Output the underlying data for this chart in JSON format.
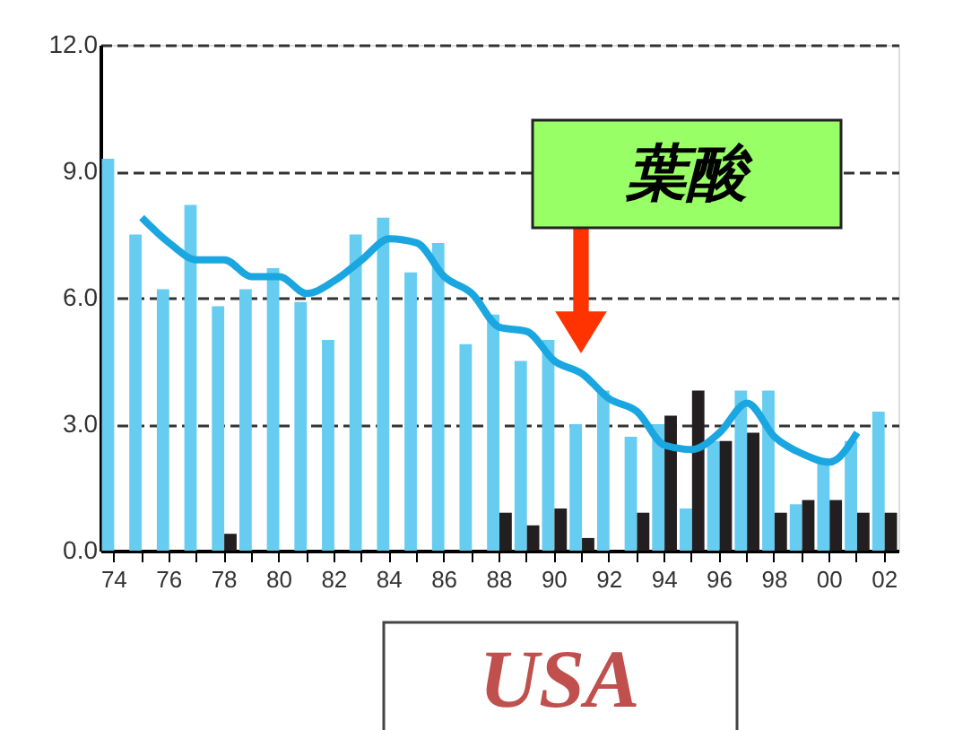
{
  "chart_data": {
    "type": "bar",
    "categories": [
      "74",
      null,
      "76",
      null,
      "78",
      null,
      "80",
      null,
      "82",
      null,
      "84",
      null,
      "86",
      null,
      "88",
      null,
      "90",
      null,
      "92",
      null,
      "94",
      null,
      "96",
      null,
      "98",
      null,
      "00",
      null,
      "02"
    ],
    "series": [
      {
        "color": "#66ccf0",
        "values": [
          9.3,
          7.5,
          6.2,
          8.2,
          5.8,
          6.2,
          6.7,
          5.9,
          5.0,
          7.5,
          7.9,
          6.6,
          7.3,
          4.9,
          5.6,
          4.5,
          5.0,
          3.0,
          3.8,
          2.7,
          3.0,
          1.0,
          2.6,
          3.8,
          3.8,
          1.1,
          2.1,
          2.6,
          3.3
        ]
      },
      {
        "color": "#231f20",
        "values": [
          null,
          null,
          null,
          null,
          0.4,
          null,
          null,
          null,
          null,
          null,
          null,
          null,
          null,
          null,
          0.9,
          0.6,
          1.0,
          0.3,
          null,
          0.9,
          3.2,
          3.8,
          2.6,
          2.8,
          0.9,
          1.2,
          1.2,
          0.9,
          0.9
        ]
      },
      {
        "type": "line",
        "color": "#1aa6e0",
        "values": [
          null,
          7.9,
          7.3,
          6.9,
          6.9,
          6.5,
          6.5,
          6.1,
          6.4,
          6.9,
          7.4,
          7.3,
          6.5,
          6.1,
          5.3,
          5.2,
          4.5,
          4.2,
          3.6,
          3.3,
          2.5,
          2.4,
          2.8,
          3.5,
          2.7,
          2.3,
          2.1,
          2.8,
          null
        ]
      }
    ],
    "ylim": [
      0,
      12
    ],
    "yticks": [
      {
        "value": 0,
        "label": "0.0"
      },
      {
        "value": 3,
        "label": "3.0"
      },
      {
        "value": 6,
        "label": "6.0"
      },
      {
        "value": 9,
        "label": "9.0"
      },
      {
        "value": 12,
        "label": "12.0"
      }
    ],
    "grid": "y",
    "legend": false,
    "annotations": [
      "葉酸",
      "USA"
    ]
  }
}
